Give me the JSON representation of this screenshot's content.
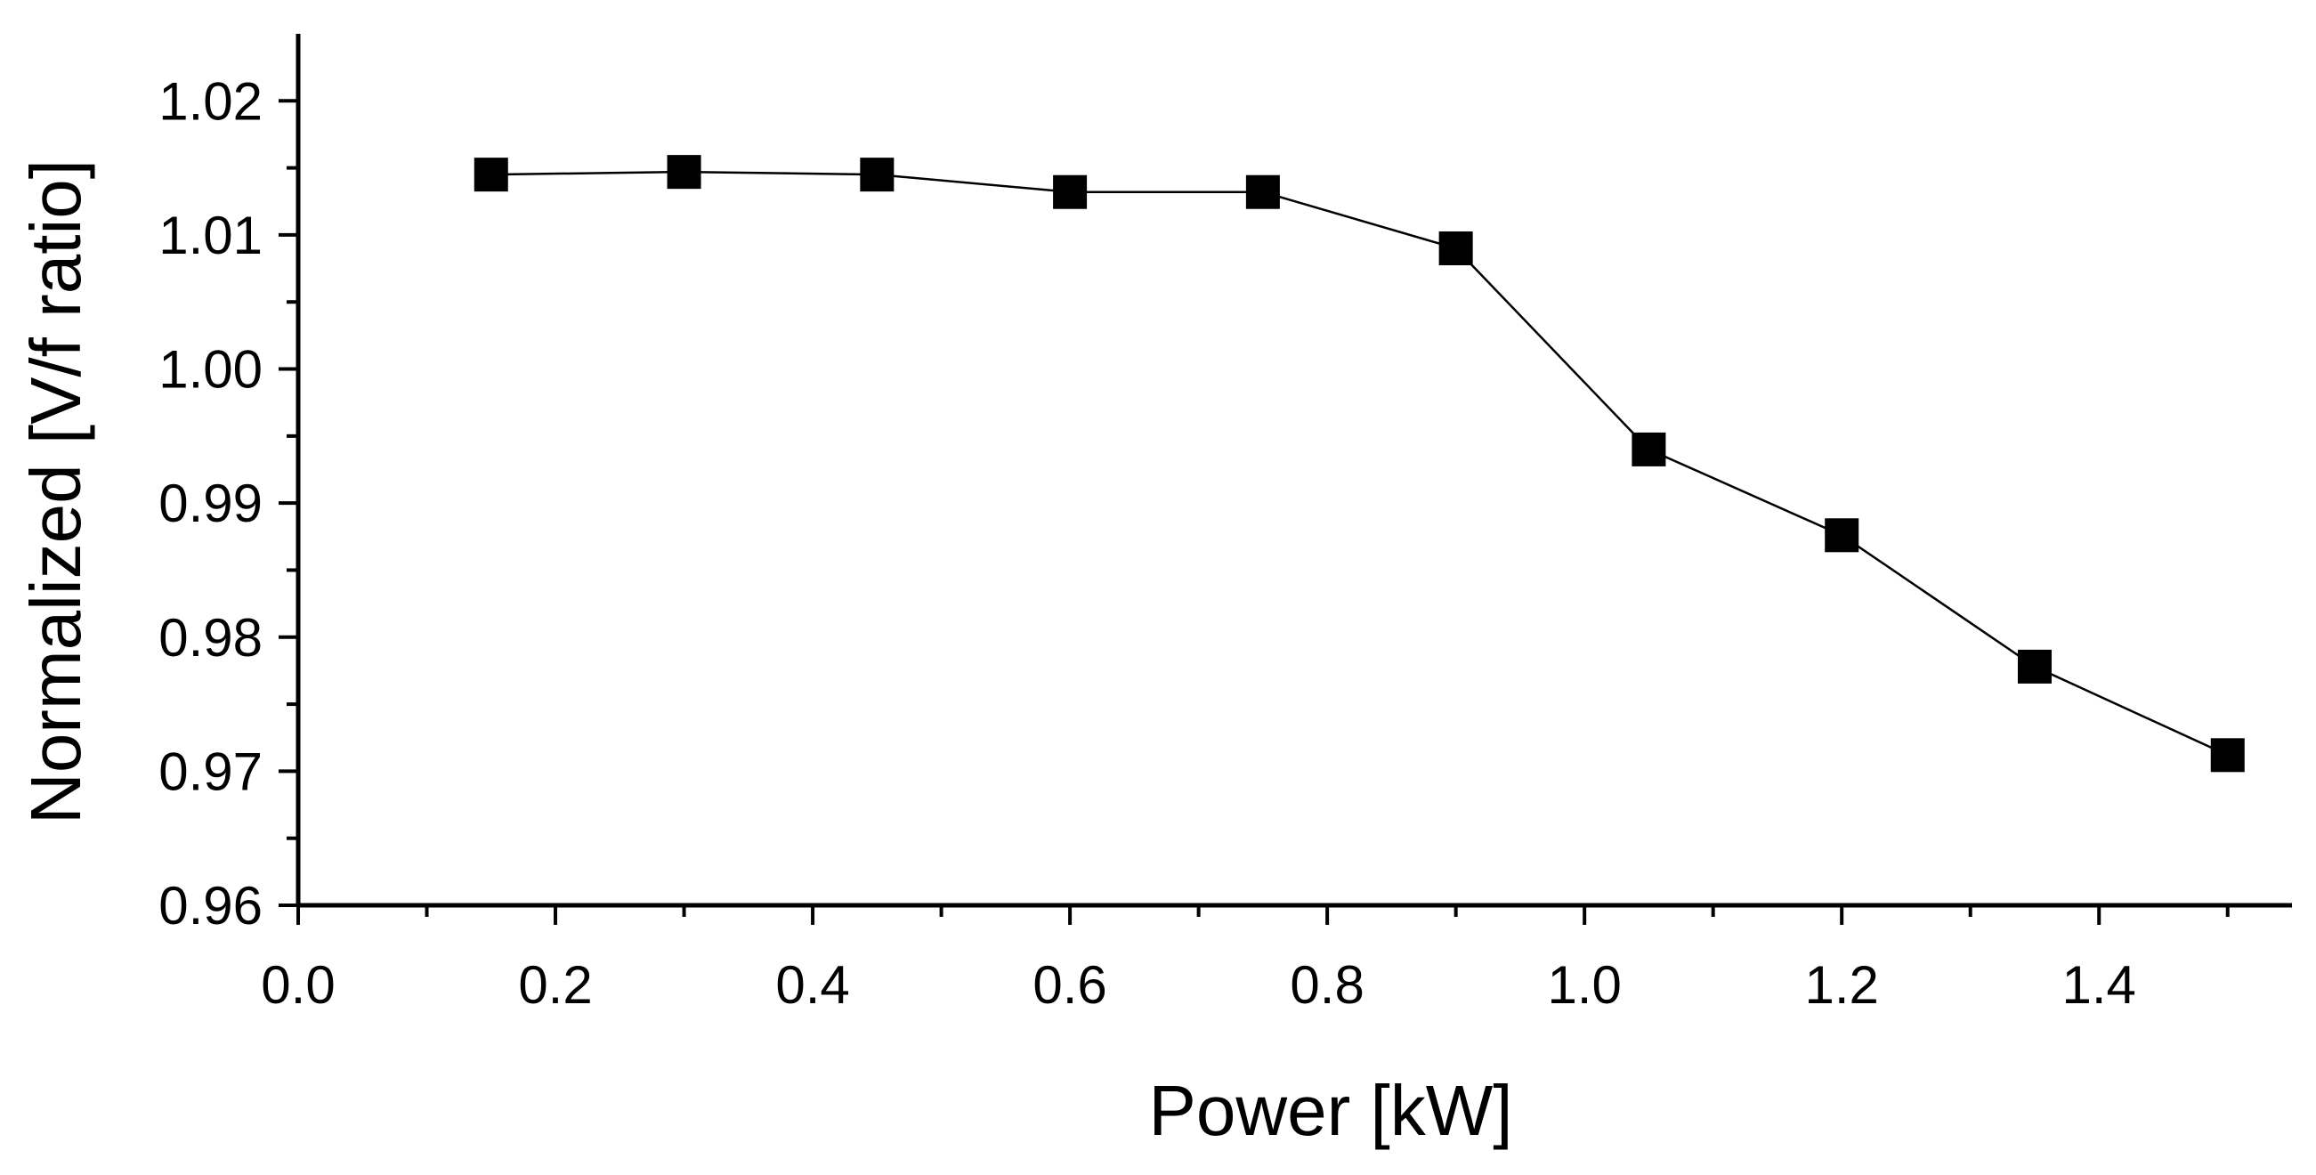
{
  "chart_data": {
    "type": "line",
    "title": "",
    "xlabel": "Power [kW]",
    "ylabel": "Normalized [V/f ratio]",
    "xlim": [
      0.0,
      1.55
    ],
    "ylim": [
      0.96,
      1.025
    ],
    "x_ticks": [
      "0.0",
      "0.2",
      "0.4",
      "0.6",
      "0.8",
      "1.0",
      "1.2",
      "1.4"
    ],
    "y_ticks": [
      "0.96",
      "0.97",
      "0.98",
      "0.99",
      "1.00",
      "1.01",
      "1.02"
    ],
    "grid": false,
    "legend": "none",
    "series": [
      {
        "name": "V/f ratio",
        "marker": "square",
        "color": "#000000",
        "x": [
          0.15,
          0.3,
          0.45,
          0.6,
          0.75,
          0.9,
          1.05,
          1.2,
          1.35,
          1.5
        ],
        "y": [
          1.0145,
          1.0147,
          1.0145,
          1.0132,
          1.0132,
          1.009,
          0.994,
          0.9876,
          0.9778,
          0.9712
        ]
      }
    ]
  }
}
